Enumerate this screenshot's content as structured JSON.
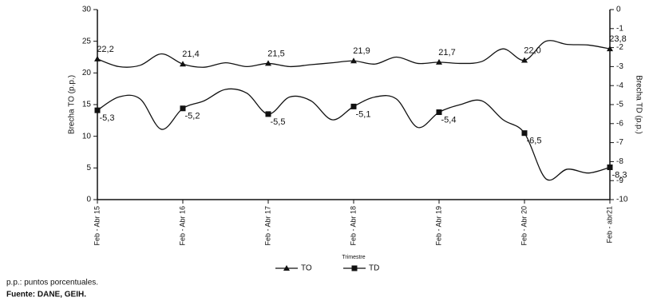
{
  "chart_data": {
    "type": "line",
    "xlabel": "Trimestre",
    "ylabel": "Brecha TO (p.p.)",
    "y2label": "Brecha TD (p.p.)",
    "categories": [
      "Feb - Abr 15",
      null,
      null,
      null,
      "Feb - Abr 16",
      null,
      null,
      null,
      "Feb - Abr 17",
      null,
      null,
      null,
      "Feb - Abr 18",
      null,
      null,
      null,
      "Feb - Abr 19",
      null,
      null,
      null,
      "Feb - Abr 20",
      null,
      null,
      null,
      "Feb - abr21"
    ],
    "series": [
      {
        "name": "TO",
        "color": "#111111",
        "marker": "triangle",
        "values": [
          22.2,
          21.0,
          21.2,
          23.0,
          21.4,
          20.9,
          21.6,
          21.0,
          21.5,
          21.0,
          21.3,
          21.6,
          21.9,
          21.4,
          22.5,
          21.5,
          21.7,
          21.5,
          21.8,
          23.8,
          22.0,
          25.0,
          24.5,
          24.4,
          23.8
        ],
        "value_labels": [
          "22,2",
          null,
          null,
          null,
          "21,4",
          null,
          null,
          null,
          "21,5",
          null,
          null,
          null,
          "21,9",
          null,
          null,
          null,
          "21,7",
          null,
          null,
          null,
          "22,0",
          null,
          null,
          null,
          "23,8"
        ]
      },
      {
        "name": "TD",
        "color": "#111111",
        "marker": "square",
        "axis": "y2",
        "values": [
          -5.3,
          -4.6,
          -4.7,
          -6.3,
          -5.2,
          -4.8,
          -4.2,
          -4.4,
          -5.5,
          -4.6,
          -4.8,
          -5.8,
          -5.1,
          -4.6,
          -4.7,
          -6.2,
          -5.4,
          -5.0,
          -4.8,
          -5.8,
          -6.5,
          -8.9,
          -8.4,
          -8.6,
          -8.3
        ],
        "value_labels": [
          "-5,3",
          null,
          null,
          null,
          "-5,2",
          null,
          null,
          null,
          "-5,5",
          null,
          null,
          null,
          "-5,1",
          null,
          null,
          null,
          "-5,4",
          null,
          null,
          null,
          "-6,5",
          null,
          null,
          null,
          "-8,3"
        ]
      }
    ],
    "ylim": [
      0,
      30
    ],
    "yticks": [
      0,
      5,
      10,
      15,
      20,
      25,
      30
    ],
    "y2lim": [
      -10,
      0
    ],
    "y2ticks": [
      0,
      -1,
      -2,
      -3,
      -4,
      -5,
      -6,
      -7,
      -8,
      -9,
      -10
    ],
    "notes": [
      "p.p.: puntos porcentuales.",
      "Fuente: DANE, GEIH."
    ]
  }
}
